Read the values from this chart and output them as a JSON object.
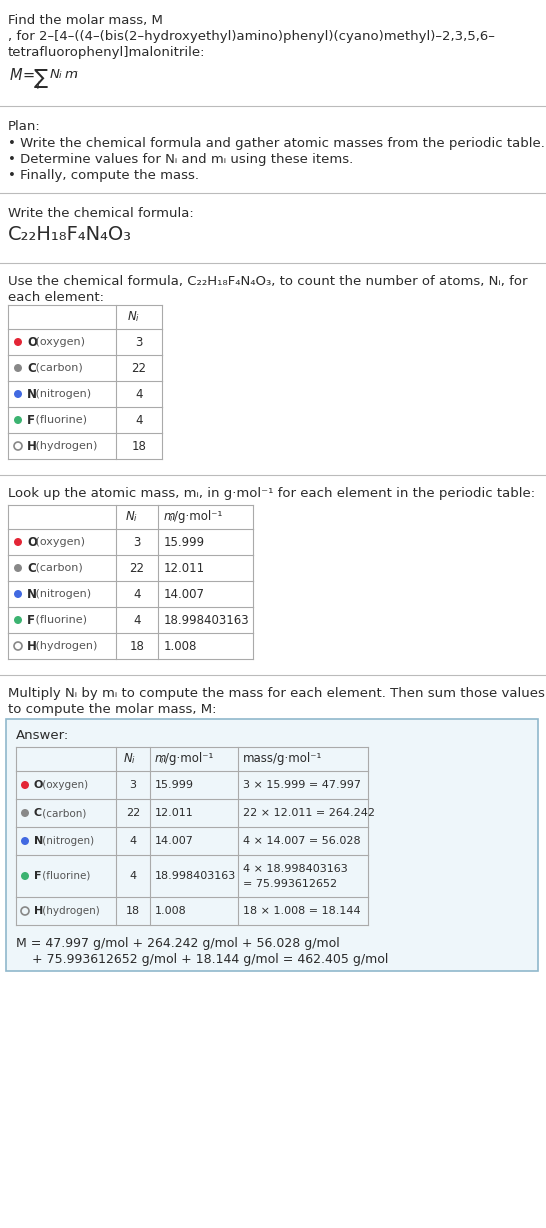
{
  "title_line1": "Find the molar mass, M",
  "title_line2": ", for 2–[4–((4–(bis(2–hydroxyethyl)amino)phenyl)(cyano)methyl)–2,3,5,6–",
  "title_line3": "tetrafluorophenyl]malonitrile:",
  "plan_header": "Plan:",
  "plan_bullets": [
    "Write the chemical formula and gather atomic masses from the periodic table.",
    "Determine values for Nᵢ and mᵢ using these items.",
    "Finally, compute the mass."
  ],
  "formula_label": "Write the chemical formula:",
  "chemical_formula_display": "C₂₂H₁₈F₄N₄O₃",
  "table1_intro1": "Use the chemical formula, C₂₂H₁₈F₄N₄O₃, to count the number of atoms, Nᵢ, for",
  "table1_intro2": "each element:",
  "table2_intro": "Look up the atomic mass, mᵢ, in g·mol⁻¹ for each element in the periodic table:",
  "table3_intro1": "Multiply Nᵢ by mᵢ to compute the mass for each element. Then sum those values",
  "table3_intro2": "to compute the molar mass, M:",
  "answer_header": "Answer:",
  "elements": [
    {
      "name": "O (oxygen)",
      "symbol": "O",
      "rest": " (oxygen)",
      "color": "#e32636",
      "filled": true,
      "Ni": "3",
      "mi": "15.999",
      "mass": "3 × 15.999 = 47.997"
    },
    {
      "name": "C (carbon)",
      "symbol": "C",
      "rest": " (carbon)",
      "color": "#888888",
      "filled": true,
      "Ni": "22",
      "mi": "12.011",
      "mass": "22 × 12.011 = 264.242"
    },
    {
      "name": "N (nitrogen)",
      "symbol": "N",
      "rest": " (nitrogen)",
      "color": "#4169e1",
      "filled": true,
      "Ni": "4",
      "mi": "14.007",
      "mass": "4 × 14.007 = 56.028"
    },
    {
      "name": "F (fluorine)",
      "symbol": "F",
      "rest": " (fluorine)",
      "color": "#3cb371",
      "filled": true,
      "Ni": "4",
      "mi": "18.998403163",
      "mass": "4 × 18.998403163\n= 75.993612652"
    },
    {
      "name": "H (hydrogen)",
      "symbol": "H",
      "rest": " (hydrogen)",
      "color": "#888888",
      "filled": false,
      "Ni": "18",
      "mi": "1.008",
      "mass": "18 × 1.008 = 18.144"
    }
  ],
  "final_line1": "M = 47.997 g/mol + 264.242 g/mol + 56.028 g/mol",
  "final_line2": "    + 75.993612652 g/mol + 18.144 g/mol = 462.405 g/mol",
  "bg_color": "#ffffff",
  "text_dark": "#2b2b2b",
  "text_gray": "#555555",
  "line_color": "#bbbbbb",
  "table_line_color": "#aaaaaa",
  "answer_bg": "#eef6fa",
  "answer_border": "#90b8cc"
}
